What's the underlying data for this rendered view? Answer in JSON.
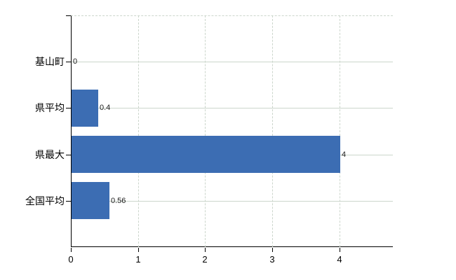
{
  "chart_data": {
    "type": "bar",
    "orientation": "horizontal",
    "title": "",
    "categories": [
      "基山町",
      "県平均",
      "県最大",
      "全国平均"
    ],
    "values": [
      0,
      0.4,
      4,
      0.56
    ],
    "value_labels": [
      "0",
      "0.4",
      "4",
      "0.56"
    ],
    "x_ticks": [
      0,
      1,
      2,
      3,
      4
    ],
    "x_tick_labels": [
      "0",
      "1",
      "2",
      "3",
      "4"
    ],
    "xlim": [
      0,
      4.8
    ],
    "grid": "on",
    "gridline_style": {
      "horizontal": "solid",
      "vertical": "dashed",
      "top_border": "dashed"
    },
    "legend": "none",
    "colors": {
      "bar": "#3c6db3",
      "axis": "#000000",
      "gridline": "#ccd6cc",
      "background": "#ffffff",
      "text": "#000000"
    }
  }
}
